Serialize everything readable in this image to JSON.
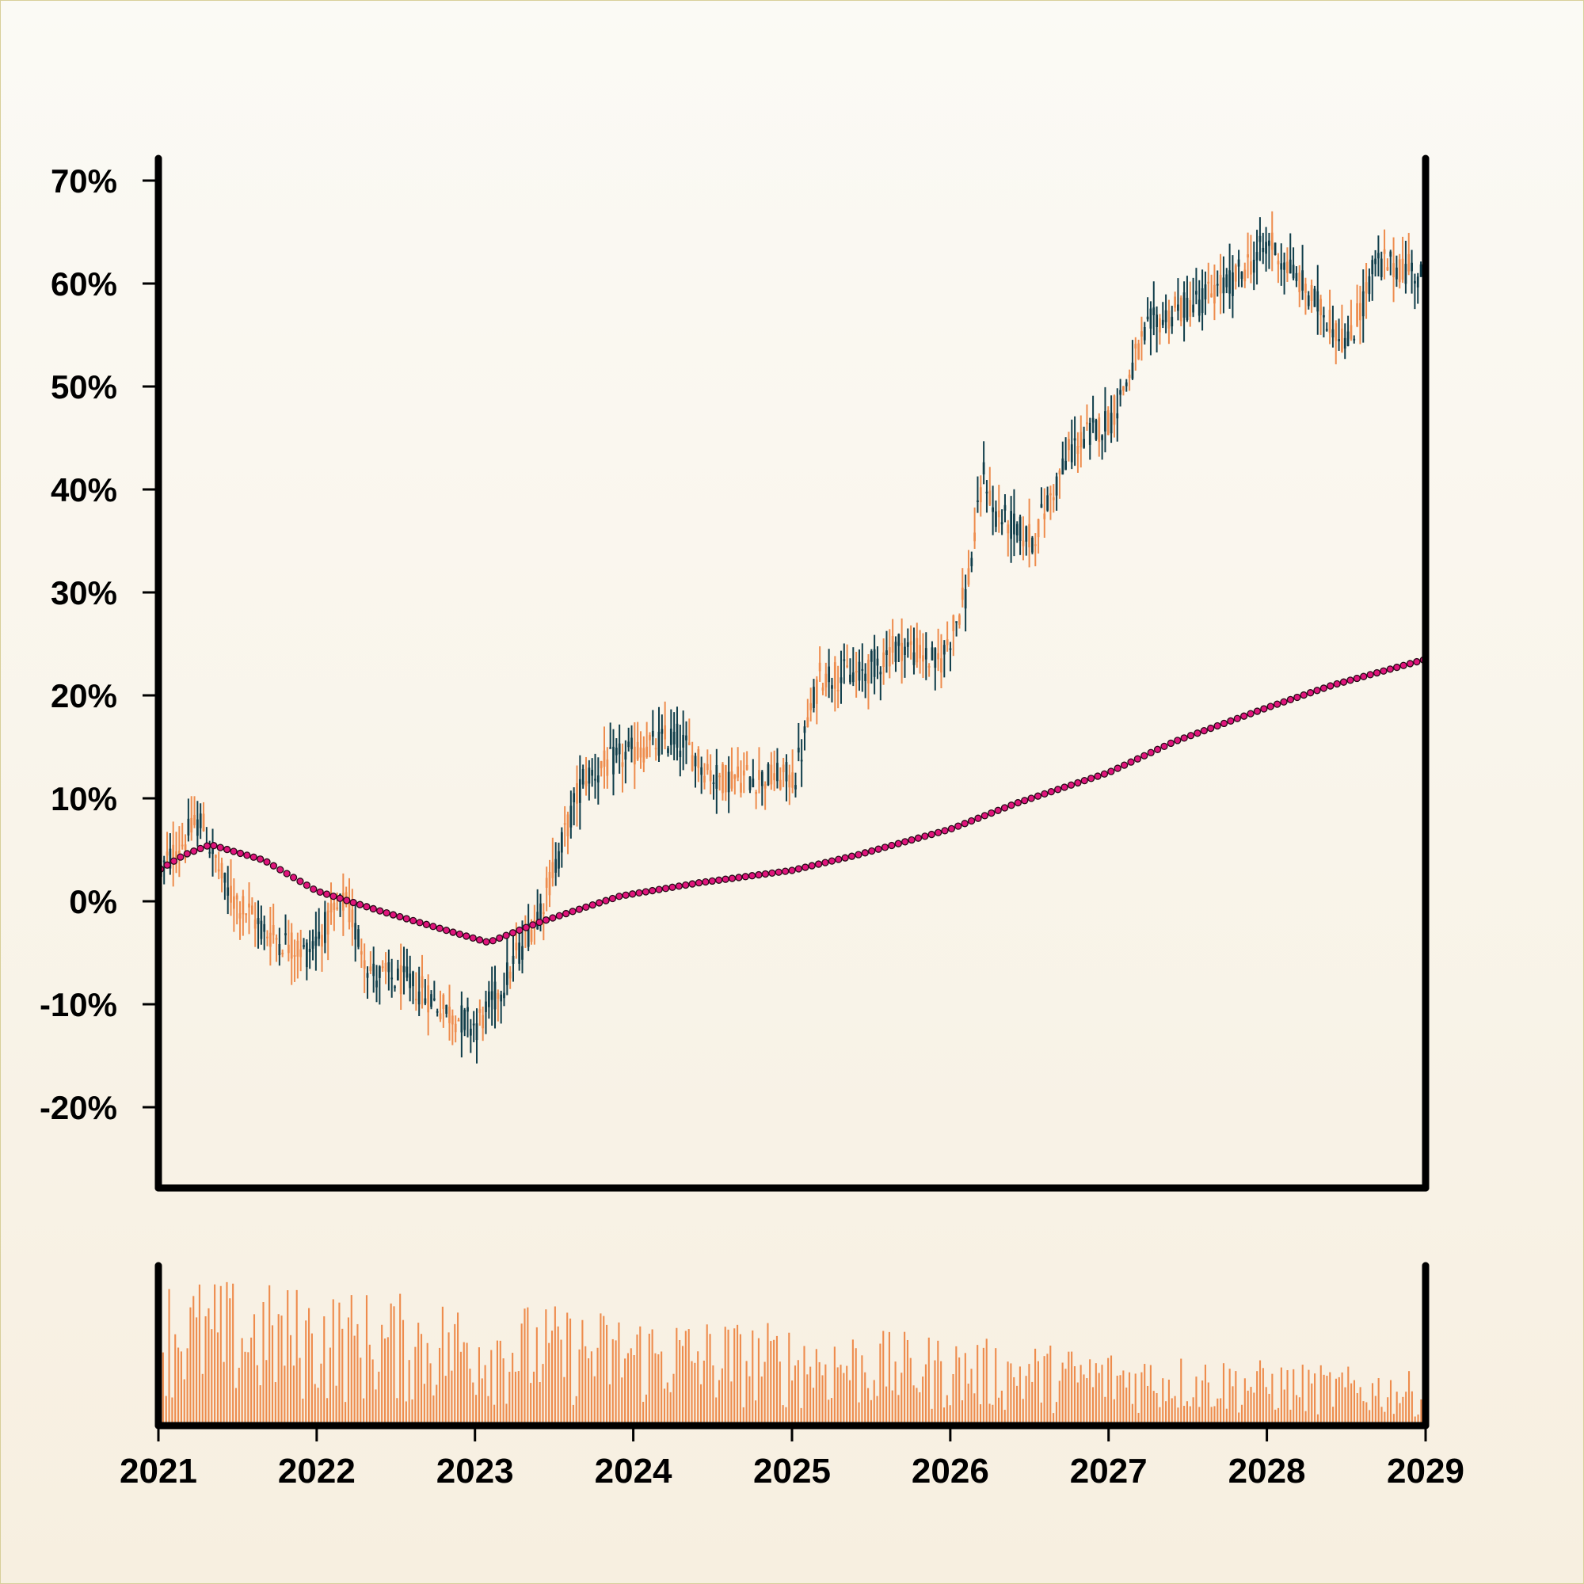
{
  "chart_data": {
    "type": "candlestick",
    "title": "",
    "xlabel": "",
    "ylabel": "",
    "x_axis": {
      "type": "date",
      "range": [
        "2021-01-01",
        "2029-01-01"
      ],
      "tick_labels": [
        "2021",
        "2022",
        "2023",
        "2024",
        "2025",
        "2026",
        "2027",
        "2028",
        "2029"
      ]
    },
    "y_axis": {
      "unit": "%",
      "range": [
        -27,
        72
      ],
      "ticks": [
        70,
        60,
        50,
        40,
        30,
        20,
        10,
        0,
        -10,
        -20
      ],
      "tick_labels": [
        "70%",
        "60%",
        "50%",
        "40%",
        "30%",
        "20%",
        "10%",
        "0%",
        "-10%",
        "-20%"
      ]
    },
    "grid": false,
    "legend": "none",
    "colors": {
      "up": "#ee8c4d",
      "down": "#0f3d4a",
      "moving_average": "#e0147c",
      "volume": "#ee8c4d",
      "axis": "#000000"
    },
    "price_path": {
      "dates": [
        "2021-01-01",
        "2021-04-01",
        "2021-06-01",
        "2021-09-01",
        "2021-12-01",
        "2022-03-01",
        "2022-05-01",
        "2022-08-01",
        "2022-11-01",
        "2023-01-01",
        "2023-03-01",
        "2023-06-01",
        "2023-09-01",
        "2023-12-01",
        "2024-04-01",
        "2024-07-01",
        "2024-10-01",
        "2025-01-01",
        "2025-03-01",
        "2025-06-01",
        "2025-09-01",
        "2025-12-01",
        "2026-02-01",
        "2026-03-15",
        "2026-04-01",
        "2026-07-01",
        "2026-10-01",
        "2027-01-01",
        "2027-04-01",
        "2027-07-01",
        "2027-10-01",
        "2028-01-01",
        "2028-04-01",
        "2028-07-01",
        "2028-09-01",
        "2029-01-01"
      ],
      "values": [
        3,
        8,
        1,
        -3,
        -5,
        0,
        -7,
        -8,
        -11,
        -12,
        -8,
        0,
        12,
        14,
        16,
        12,
        12,
        12,
        22,
        22,
        25,
        23,
        30,
        42,
        38,
        35,
        44,
        47,
        56,
        58,
        60,
        64,
        59,
        54,
        62,
        61
      ]
    },
    "moving_average": {
      "dates": [
        "2021-01-01",
        "2021-03-01",
        "2021-05-01",
        "2021-09-01",
        "2022-01-01",
        "2022-06-01",
        "2022-10-01",
        "2023-02-01",
        "2023-06-01",
        "2023-12-01",
        "2024-06-01",
        "2025-01-01",
        "2025-06-01",
        "2026-01-01",
        "2026-06-01",
        "2027-01-01",
        "2027-06-01",
        "2028-01-01",
        "2028-06-01",
        "2029-01-01"
      ],
      "values": [
        3,
        4.5,
        5.5,
        4,
        1,
        -1,
        -2.5,
        -4,
        -2,
        0.5,
        1.8,
        3,
        4.5,
        7,
        9.5,
        12.5,
        15.5,
        18.8,
        21,
        23.5
      ]
    },
    "volume": {
      "overall_trend": "declining",
      "relative_range": [
        0,
        1
      ]
    }
  }
}
